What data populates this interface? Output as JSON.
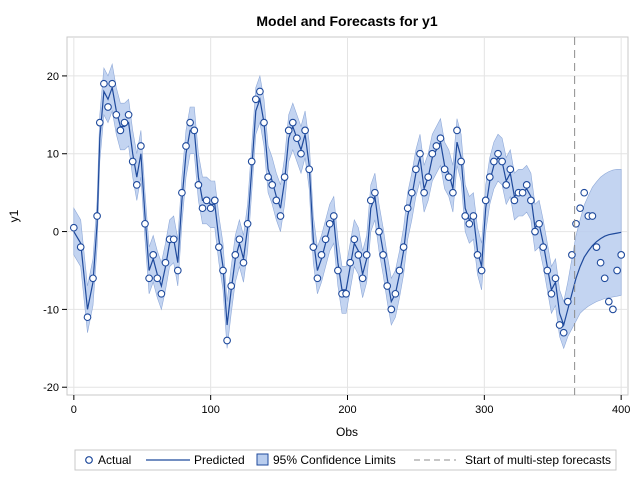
{
  "chart_data": {
    "type": "line",
    "title": "Model and Forecasts for y1",
    "xlabel": "Obs",
    "ylabel": "y1",
    "xlim": [
      -5,
      405
    ],
    "ylim": [
      -21,
      25
    ],
    "xticks": [
      0,
      100,
      200,
      300,
      400
    ],
    "yticks": [
      -20,
      -10,
      0,
      10,
      20
    ],
    "grid": true,
    "legend_position": "bottom",
    "forecast_start_x": 366,
    "colors": {
      "actual": "#1f4a9c",
      "predicted": "#1f4a9c",
      "band_fill": "#b9cdee",
      "band_edge": "#8fa9d8",
      "reference_line": "#8c8c8c",
      "grid": "#e4e4e4"
    },
    "series": [
      {
        "name": "Actual",
        "style": "marker",
        "x": [
          0,
          5,
          10,
          14,
          17,
          19,
          22,
          25,
          28,
          31,
          34,
          37,
          40,
          43,
          46,
          49,
          52,
          55,
          58,
          61,
          64,
          67,
          70,
          73,
          76,
          79,
          82,
          85,
          88,
          91,
          94,
          97,
          100,
          103,
          106,
          109,
          112,
          115,
          118,
          121,
          124,
          127,
          130,
          133,
          136,
          139,
          142,
          145,
          148,
          151,
          154,
          157,
          160,
          163,
          166,
          169,
          172,
          175,
          178,
          181,
          184,
          187,
          190,
          193,
          196,
          199,
          202,
          205,
          208,
          211,
          214,
          217,
          220,
          223,
          226,
          229,
          232,
          235,
          238,
          241,
          244,
          247,
          250,
          253,
          256,
          259,
          262,
          265,
          268,
          271,
          274,
          277,
          280,
          283,
          286,
          289,
          292,
          295,
          298,
          301,
          304,
          307,
          310,
          313,
          316,
          319,
          322,
          325,
          328,
          331,
          334,
          337,
          340,
          343,
          346,
          349,
          352,
          355,
          358,
          361,
          364,
          367,
          370,
          373,
          376,
          379,
          382,
          385,
          388,
          391,
          394,
          397,
          400
        ],
        "values": [
          0.5,
          -2,
          -11,
          -6,
          2,
          14,
          19,
          16,
          19,
          15,
          13,
          14,
          15,
          9,
          6,
          11,
          1,
          -6,
          -3,
          -6,
          -8,
          -4,
          -1,
          -1,
          -5,
          5,
          11,
          14,
          13,
          6,
          3,
          4,
          3,
          4,
          -2,
          -5,
          -14,
          -7,
          -3,
          -1,
          -4,
          1,
          9,
          17,
          18,
          14,
          7,
          6,
          4,
          2,
          7,
          13,
          14,
          12,
          10,
          13,
          8,
          -2,
          -6,
          -3,
          -1,
          1,
          2,
          -5,
          -8,
          -8,
          -4,
          -1,
          -3,
          -6,
          -3,
          4,
          5,
          0,
          -3,
          -7,
          -10,
          -8,
          -5,
          -2,
          3,
          5,
          8,
          10,
          5,
          7,
          10,
          11,
          12,
          8,
          7,
          5,
          13,
          9,
          2,
          1,
          2,
          -3,
          -5,
          4,
          7,
          9,
          10,
          9,
          6,
          8,
          4,
          5,
          5,
          6,
          4,
          0,
          1,
          -2,
          -5,
          -8,
          -6,
          -12,
          -13,
          -9,
          -3,
          1,
          3,
          5,
          2,
          2,
          -2,
          -4,
          -6,
          -9,
          -10,
          -5,
          -3
        ],
        "unit": "y1"
      },
      {
        "name": "Predicted",
        "style": "line",
        "x": [
          0,
          5,
          10,
          14,
          17,
          19,
          22,
          25,
          28,
          31,
          34,
          37,
          40,
          43,
          46,
          49,
          52,
          55,
          58,
          61,
          64,
          67,
          70,
          73,
          76,
          79,
          82,
          85,
          88,
          91,
          94,
          97,
          100,
          103,
          106,
          109,
          112,
          115,
          118,
          121,
          124,
          127,
          130,
          133,
          136,
          139,
          142,
          145,
          148,
          151,
          154,
          157,
          160,
          163,
          166,
          169,
          172,
          175,
          178,
          181,
          184,
          187,
          190,
          193,
          196,
          199,
          202,
          205,
          208,
          211,
          214,
          217,
          220,
          223,
          226,
          229,
          232,
          235,
          238,
          241,
          244,
          247,
          250,
          253,
          256,
          259,
          262,
          265,
          268,
          271,
          274,
          277,
          280,
          283,
          286,
          289,
          292,
          295,
          298,
          301,
          304,
          307,
          310,
          313,
          316,
          319,
          322,
          325,
          328,
          331,
          334,
          337,
          340,
          343,
          346,
          349,
          352,
          355,
          358,
          361,
          364,
          367,
          370,
          373,
          376,
          379,
          382,
          385,
          388,
          391,
          394,
          397,
          400
        ],
        "values": [
          0,
          -1.5,
          -10,
          -6.5,
          1,
          12,
          18,
          17,
          18.5,
          15.5,
          13.5,
          13.5,
          14,
          10,
          7,
          10,
          2,
          -5,
          -3.5,
          -5.5,
          -7,
          -4.5,
          -1.5,
          -1,
          -4,
          4,
          10,
          13,
          13,
          7,
          4,
          4,
          3.5,
          3.5,
          -1,
          -4.5,
          -12,
          -7.5,
          -3.5,
          -1.5,
          -3.5,
          0.5,
          8,
          15.5,
          17,
          14,
          8,
          6.5,
          4.5,
          3,
          6.5,
          12,
          13.5,
          12,
          10.5,
          12.5,
          8.5,
          -1,
          -5,
          -3.5,
          -1.5,
          0.5,
          1.5,
          -4,
          -7.5,
          -7.5,
          -4.5,
          -1.5,
          -2.5,
          -5.5,
          -3.5,
          3,
          4.5,
          0.5,
          -2.5,
          -6,
          -9,
          -8,
          -5.5,
          -2.5,
          2,
          4.5,
          7.5,
          9.5,
          5.5,
          7,
          9.5,
          10.5,
          11.5,
          8.5,
          7.5,
          5.5,
          11.5,
          9.5,
          3,
          1.5,
          2,
          -2.5,
          -4.5,
          3,
          6.5,
          8.5,
          9.5,
          9,
          6.5,
          7.5,
          4.5,
          5,
          5,
          5.5,
          4.5,
          0.5,
          1,
          -1.5,
          -4.5,
          -7.5,
          -6.5,
          -10.5,
          -12,
          -10,
          -8,
          -6,
          -4.5,
          -3.3,
          -2.5,
          -1.8,
          -1.3,
          -0.9,
          -0.6,
          -0.4,
          -0.3,
          -0.2,
          -0.1
        ],
        "unit": "y1"
      },
      {
        "name": "95% Confidence Limits",
        "style": "band",
        "x": [
          0,
          5,
          10,
          14,
          17,
          19,
          22,
          25,
          28,
          31,
          34,
          37,
          40,
          43,
          46,
          49,
          52,
          55,
          58,
          61,
          64,
          67,
          70,
          73,
          76,
          79,
          82,
          85,
          88,
          91,
          94,
          97,
          100,
          103,
          106,
          109,
          112,
          115,
          118,
          121,
          124,
          127,
          130,
          133,
          136,
          139,
          142,
          145,
          148,
          151,
          154,
          157,
          160,
          163,
          166,
          169,
          172,
          175,
          178,
          181,
          184,
          187,
          190,
          193,
          196,
          199,
          202,
          205,
          208,
          211,
          214,
          217,
          220,
          223,
          226,
          229,
          232,
          235,
          238,
          241,
          244,
          247,
          250,
          253,
          256,
          259,
          262,
          265,
          268,
          271,
          274,
          277,
          280,
          283,
          286,
          289,
          292,
          295,
          298,
          301,
          304,
          307,
          310,
          313,
          316,
          319,
          322,
          325,
          328,
          331,
          334,
          337,
          340,
          343,
          346,
          349,
          352,
          355,
          358,
          361,
          364,
          367,
          370,
          373,
          376,
          379,
          382,
          385,
          388,
          391,
          394,
          397,
          400
        ],
        "lower": [
          -3,
          -4.5,
          -13,
          -9.5,
          -2,
          9,
          15,
          14,
          15.5,
          12.5,
          10.5,
          10.5,
          11,
          7,
          4,
          7,
          -1,
          -8,
          -6.5,
          -8.5,
          -10,
          -7.5,
          -4.5,
          -4,
          -7,
          1,
          7,
          10,
          10,
          4,
          1,
          1,
          0.5,
          0.5,
          -4,
          -7.5,
          -15,
          -10.5,
          -6.5,
          -4.5,
          -6.5,
          -2.5,
          5,
          12.5,
          14,
          11,
          5,
          3.5,
          1.5,
          0,
          3.5,
          9,
          10.5,
          9,
          7.5,
          9.5,
          5.5,
          -4,
          -8,
          -6.5,
          -4.5,
          -2.5,
          -1.5,
          -7,
          -10.5,
          -10.5,
          -7.5,
          -4.5,
          -5.5,
          -8.5,
          -6.5,
          0,
          1.5,
          -2.5,
          -5.5,
          -9,
          -12,
          -11,
          -8.5,
          -5.5,
          -1,
          1.5,
          4.5,
          6.5,
          2.5,
          4,
          6.5,
          7.5,
          8.5,
          5.5,
          4.5,
          2.5,
          8.5,
          6.5,
          0,
          -1.5,
          -1,
          -5.5,
          -7.5,
          0,
          3.5,
          5.5,
          6.5,
          6,
          3.5,
          4.5,
          1.5,
          2,
          2,
          2.5,
          1.5,
          -2.5,
          -2,
          -4.5,
          -7.5,
          -10.5,
          -9.5,
          -13.5,
          -15,
          -13.5,
          -12.5,
          -11.5,
          -10.5,
          -10,
          -9.6,
          -9.3,
          -9,
          -8.8,
          -8.6,
          -8.5,
          -8.4,
          -8.3,
          -8.2
        ],
        "upper": [
          3,
          1.5,
          -7,
          -3.5,
          4,
          15,
          21,
          20,
          21.5,
          18.5,
          16.5,
          16.5,
          17,
          13,
          10,
          13,
          5,
          -2,
          -0.5,
          -2.5,
          -4,
          -1.5,
          1.5,
          2,
          -1,
          7,
          13,
          16,
          16,
          10,
          7,
          7,
          6.5,
          6.5,
          2,
          -1.5,
          -9,
          -4.5,
          -0.5,
          1.5,
          -0.5,
          3.5,
          11,
          18.5,
          20,
          17,
          11,
          9.5,
          7.5,
          6,
          9.5,
          15,
          16.5,
          15,
          13.5,
          15.5,
          11.5,
          2,
          -2,
          -0.5,
          1.5,
          3.5,
          4.5,
          -1,
          -4.5,
          -4.5,
          -1.5,
          1.5,
          0.5,
          -2.5,
          -0.5,
          6,
          7.5,
          3.5,
          0.5,
          -3,
          -6,
          -5,
          -2.5,
          0.5,
          5,
          7.5,
          10.5,
          12.5,
          8.5,
          10,
          12.5,
          13.5,
          14.5,
          11.5,
          10.5,
          8.5,
          14.5,
          12.5,
          6,
          4.5,
          5,
          0.5,
          -1.5,
          6,
          9.5,
          11.5,
          12.5,
          12,
          9.5,
          10.5,
          7.5,
          8,
          8,
          8.5,
          7.5,
          3.5,
          4,
          1.5,
          -1.5,
          -4.5,
          -3.5,
          -7.5,
          -9,
          -6.5,
          -3.5,
          -0.5,
          1.5,
          3.4,
          4.6,
          5.7,
          6.4,
          7,
          7.4,
          7.7,
          7.9,
          8,
          8
        ]
      },
      {
        "name": "Start of multi-step forecasts",
        "style": "reference-line"
      }
    ]
  },
  "legend": [
    {
      "label": "Actual"
    },
    {
      "label": "Predicted"
    },
    {
      "label": "95% Confidence Limits"
    },
    {
      "label": "Start of multi-step forecasts"
    }
  ]
}
